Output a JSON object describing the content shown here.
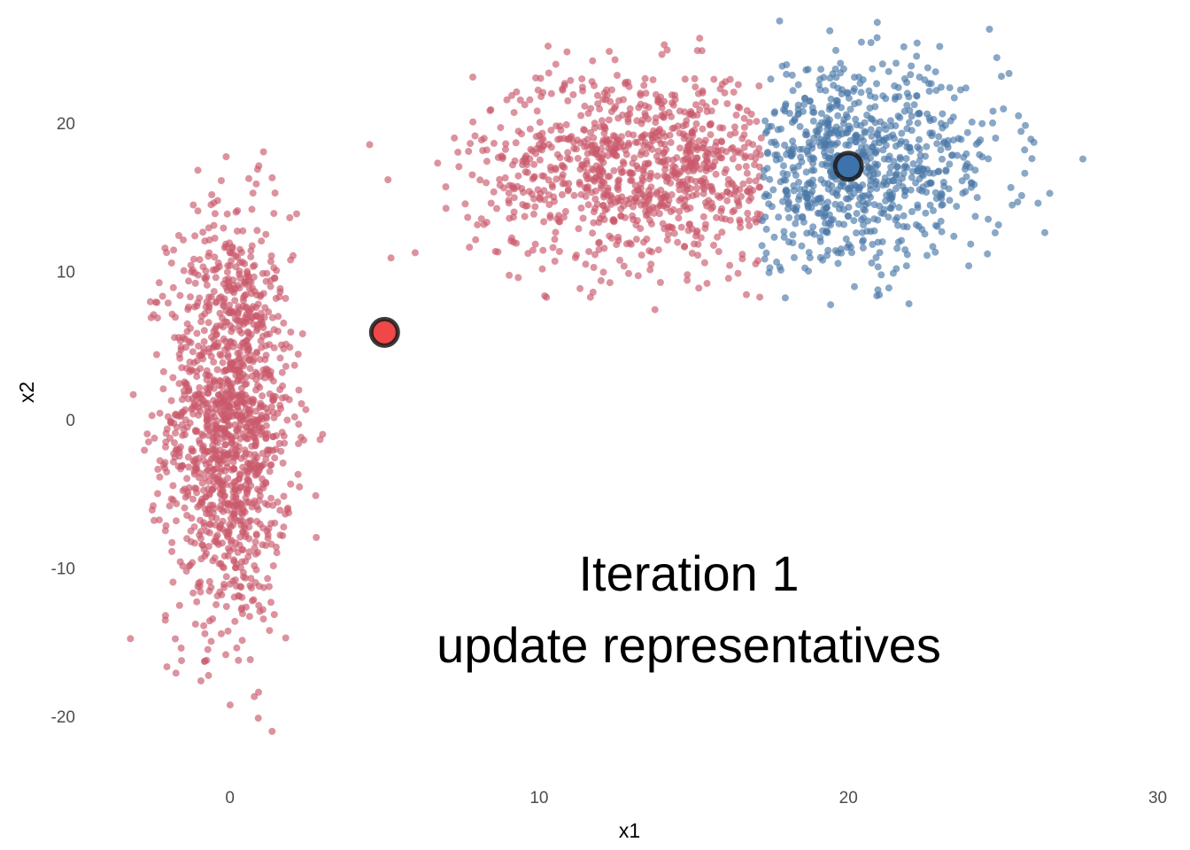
{
  "chart_data": {
    "type": "scatter",
    "title": "",
    "xlabel": "x1",
    "ylabel": "x2",
    "xlim": [
      -5,
      30.5
    ],
    "ylim": [
      -24,
      27
    ],
    "x_ticks": [
      0,
      10,
      20,
      30
    ],
    "y_ticks": [
      -20,
      -10,
      0,
      10,
      20
    ],
    "grid": false,
    "legend": "none",
    "annotation_lines": [
      "Iteration 1",
      "update representatives"
    ],
    "clusters": [
      {
        "color": "#c9596b",
        "point_groups": [
          {
            "n": 1300,
            "x_mean": 0,
            "x_sd": 1.0,
            "y_mean": 0,
            "y_sd": 7,
            "x_min": -3.5,
            "x_max": 3,
            "y_min": -22,
            "y_max": 23
          },
          {
            "n": 950,
            "x_mean": 13.5,
            "x_sd": 2.8,
            "y_mean": 17,
            "y_sd": 3.3,
            "x_min": 4.5,
            "x_max": 17.2,
            "y_min": 6,
            "y_max": 26
          }
        ]
      },
      {
        "color": "#4a78a8",
        "point_groups": [
          {
            "n": 800,
            "x_mean": 20,
            "x_sd": 2.5,
            "y_mean": 17,
            "y_sd": 3.3,
            "x_min": 17.2,
            "x_max": 29.5,
            "y_min": 7,
            "y_max": 27
          }
        ]
      }
    ],
    "representatives": [
      {
        "x": 5.0,
        "y": 5.9,
        "fill": "#f04848"
      },
      {
        "x": 20.0,
        "y": 17.1,
        "fill": "#3d72ad"
      }
    ]
  }
}
